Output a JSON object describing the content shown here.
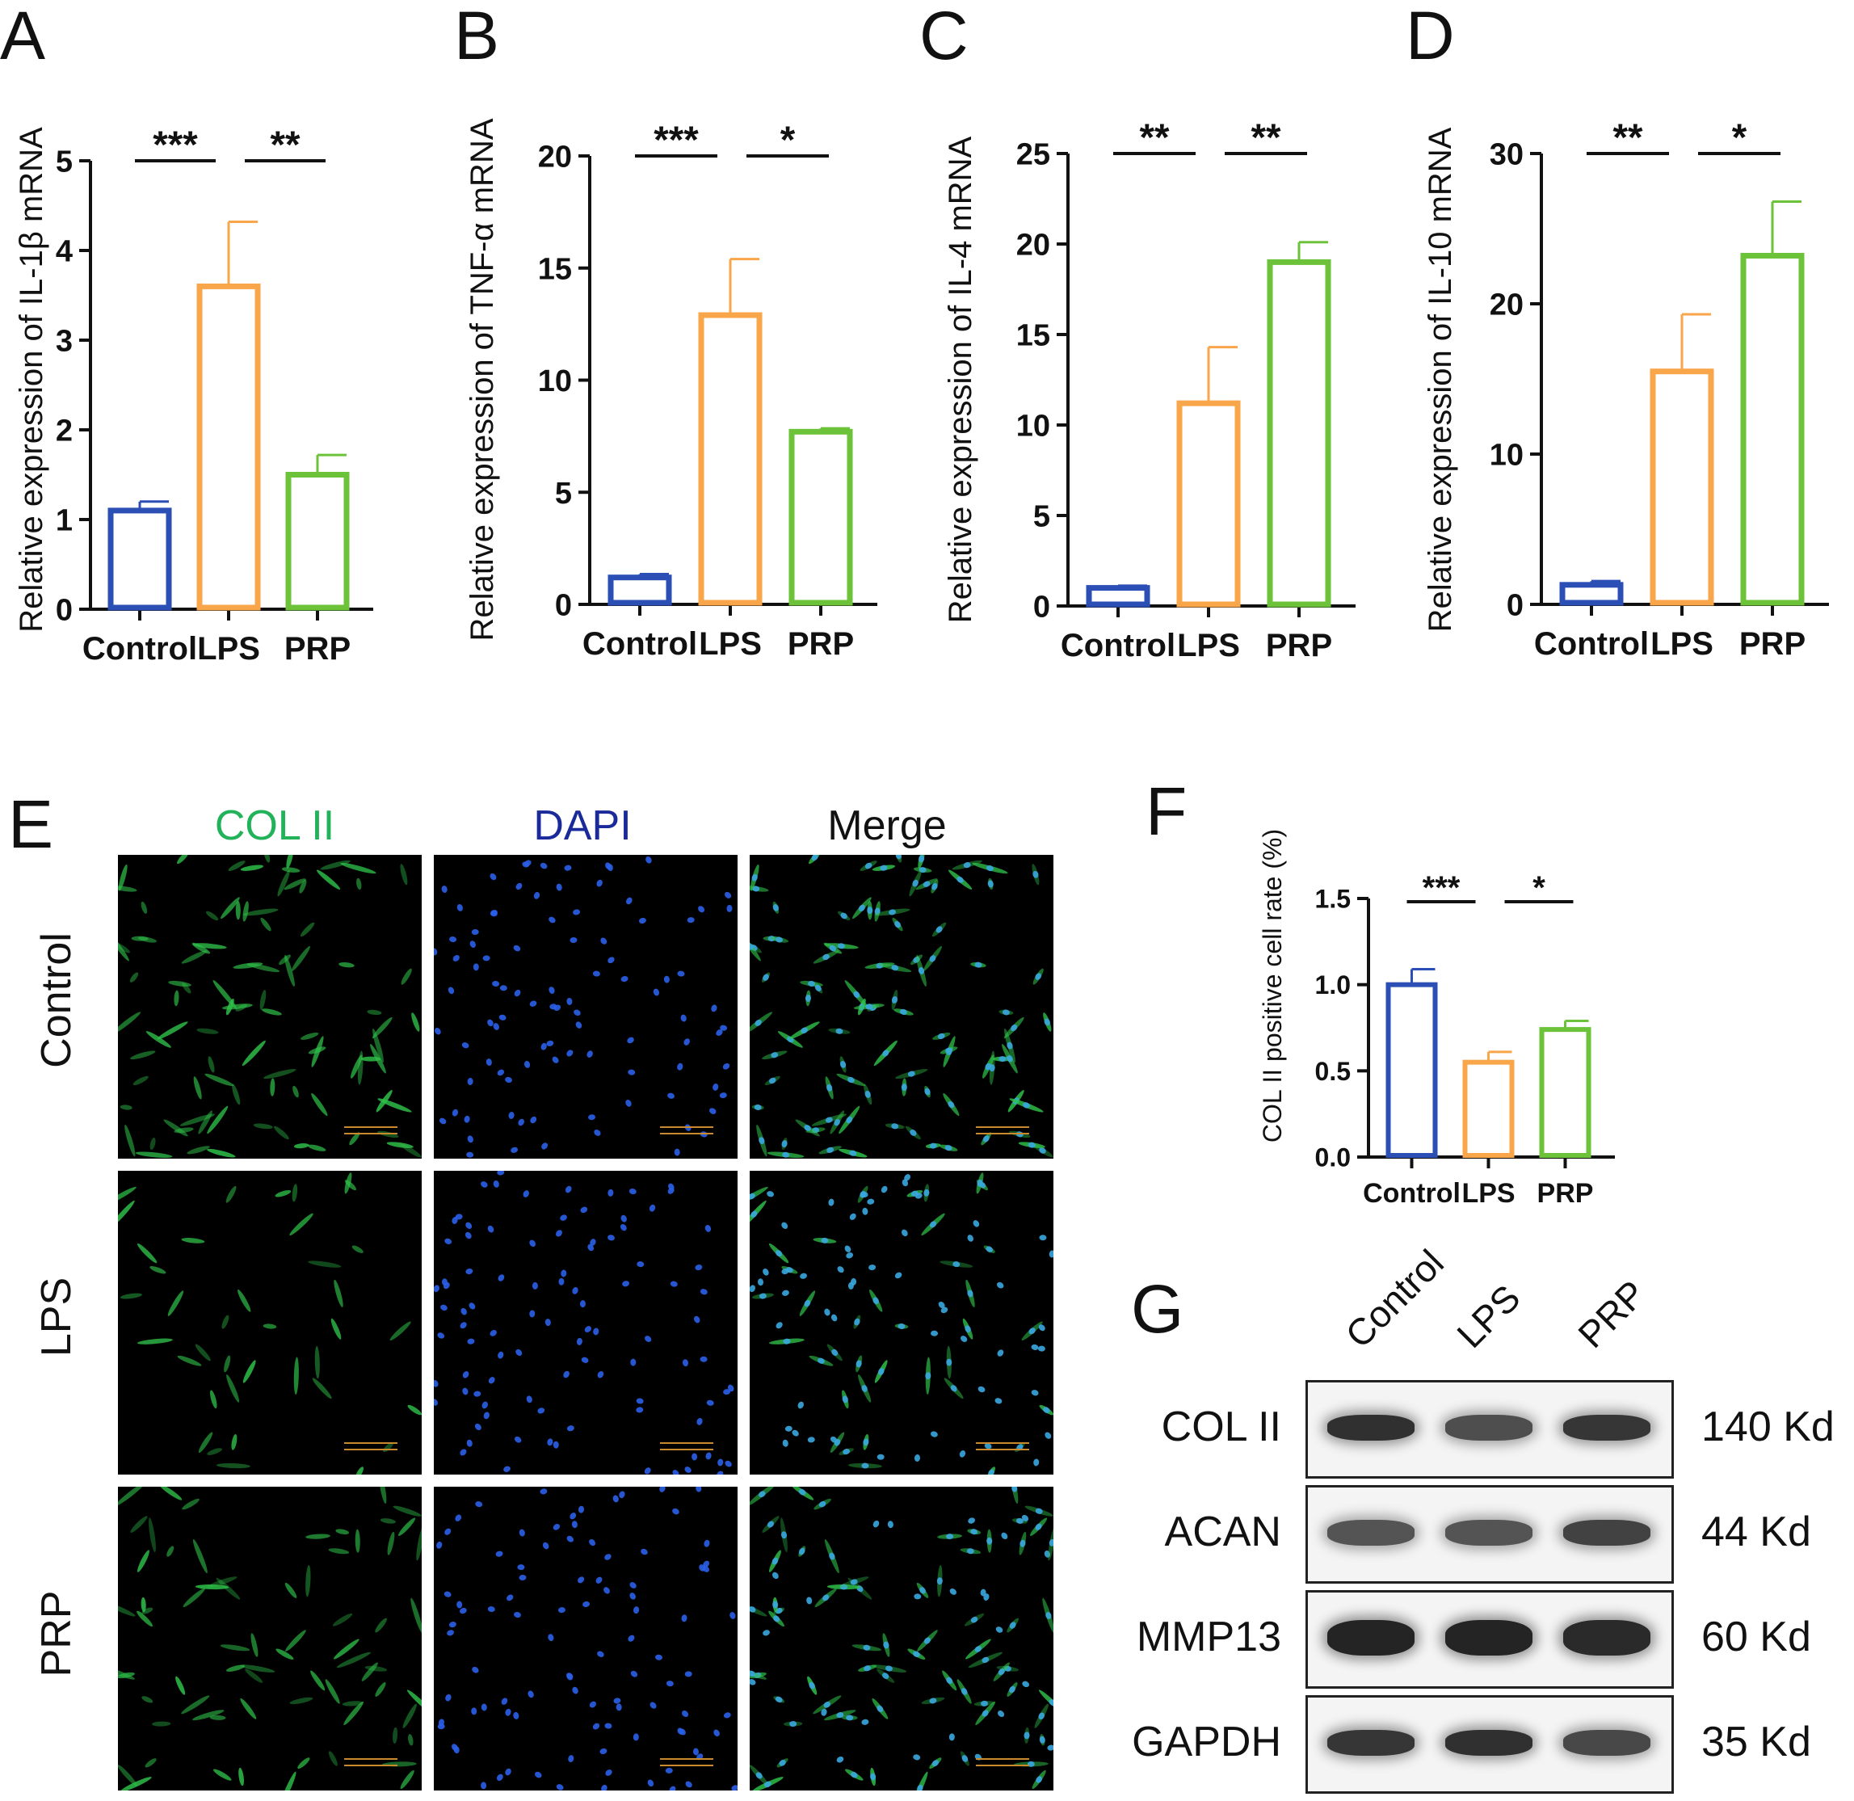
{
  "panels": {
    "A": "A",
    "B": "B",
    "C": "C",
    "D": "D",
    "E": "E",
    "F": "F",
    "G": "G"
  },
  "colors": {
    "Control": "#2b4fb5",
    "LPS": "#f9a54a",
    "PRP": "#6cc33a"
  },
  "chart_data": [
    {
      "id": "A",
      "type": "bar",
      "categories": [
        "Control",
        "LPS",
        "PRP"
      ],
      "values": [
        1.1,
        3.6,
        1.5
      ],
      "errors": [
        0.1,
        0.72,
        0.22
      ],
      "ylabel": "Relative expression of IL-1β mRNA",
      "ylim": [
        0,
        5
      ],
      "yticks": [
        "0",
        "1",
        "2",
        "3",
        "4",
        "5"
      ],
      "significance": [
        {
          "from": 0,
          "to": 1,
          "label": "***"
        },
        {
          "from": 1,
          "to": 2,
          "label": "**"
        }
      ]
    },
    {
      "id": "B",
      "type": "bar",
      "categories": [
        "Control",
        "LPS",
        "PRP"
      ],
      "values": [
        1.2,
        12.9,
        7.7
      ],
      "errors": [
        0.15,
        2.5,
        0.15
      ],
      "ylabel": "Relative expression of TNF-α mRNA",
      "ylim": [
        0,
        20
      ],
      "yticks": [
        "0",
        "5",
        "10",
        "15",
        "20"
      ],
      "significance": [
        {
          "from": 0,
          "to": 1,
          "label": "***"
        },
        {
          "from": 1,
          "to": 2,
          "label": "*"
        }
      ]
    },
    {
      "id": "C",
      "type": "bar",
      "categories": [
        "Control",
        "LPS",
        "PRP"
      ],
      "values": [
        1.0,
        11.2,
        19.0
      ],
      "errors": [
        0.12,
        3.1,
        1.1
      ],
      "ylabel": "Relative expression of IL-4 mRNA",
      "ylim": [
        0,
        25
      ],
      "yticks": [
        "0",
        "5",
        "10",
        "15",
        "20",
        "25"
      ],
      "significance": [
        {
          "from": 0,
          "to": 1,
          "label": "**"
        },
        {
          "from": 1,
          "to": 2,
          "label": "**"
        }
      ]
    },
    {
      "id": "D",
      "type": "bar",
      "categories": [
        "Control",
        "LPS",
        "PRP"
      ],
      "values": [
        1.3,
        15.5,
        23.2
      ],
      "errors": [
        0.25,
        3.8,
        3.6
      ],
      "ylabel": "Relative expression of IL-10 mRNA",
      "ylim": [
        0,
        30
      ],
      "yticks": [
        "0",
        "10",
        "20",
        "30"
      ],
      "significance": [
        {
          "from": 0,
          "to": 1,
          "label": "**"
        },
        {
          "from": 1,
          "to": 2,
          "label": "*"
        }
      ]
    },
    {
      "id": "F",
      "type": "bar",
      "categories": [
        "Control",
        "LPS",
        "PRP"
      ],
      "values": [
        1.0,
        0.55,
        0.74
      ],
      "errors": [
        0.09,
        0.06,
        0.05
      ],
      "ylabel": "COL II positive cell rate (%)",
      "ylim": [
        0,
        1.5
      ],
      "yticks": [
        "0.0",
        "0.5",
        "1.0",
        "1.5"
      ],
      "significance": [
        {
          "from": 0,
          "to": 1,
          "label": "***"
        },
        {
          "from": 1,
          "to": 2,
          "label": "*"
        }
      ]
    }
  ],
  "imaging": {
    "columns": [
      "COL II",
      "DAPI",
      "Merge"
    ],
    "rows": [
      "Control",
      "LPS",
      "PRP"
    ],
    "column_colors": [
      "#22b35a",
      "#1a2a9a",
      "#111111"
    ],
    "staining_level": {
      "Control": 1.0,
      "LPS": 0.45,
      "PRP": 0.75
    }
  },
  "western_blot": {
    "lanes": [
      "Control",
      "LPS",
      "PRP"
    ],
    "proteins": [
      {
        "name": "COL II",
        "kd": "140 Kd",
        "intensity": [
          0.85,
          0.6,
          0.8
        ]
      },
      {
        "name": "ACAN",
        "kd": "44 Kd",
        "intensity": [
          0.55,
          0.55,
          0.7
        ]
      },
      {
        "name": "MMP13",
        "kd": "60 Kd",
        "intensity": [
          0.95,
          0.95,
          0.9
        ]
      },
      {
        "name": "GAPDH",
        "kd": "35 Kd",
        "intensity": [
          0.8,
          0.85,
          0.65
        ]
      }
    ]
  }
}
